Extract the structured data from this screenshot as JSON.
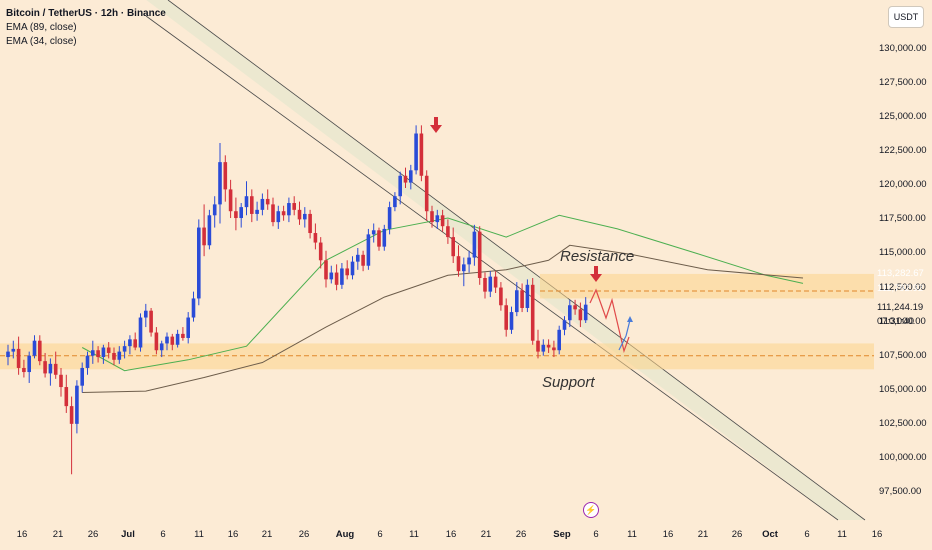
{
  "legend": {
    "title": "Bitcoin / TetherUS · 12h · Binance",
    "ema_slow": "EMA (89, close)",
    "ema_fast": "EMA (34, close)"
  },
  "currency": "USDT",
  "colors": {
    "background": "#fcebd5",
    "up_candle": "#2a4bd7",
    "down_candle": "#d32f3a",
    "ema_fast": "#4caf50",
    "ema_slow": "#6d5d4b",
    "zone": "#fbd38a",
    "channel_fill": "#e9e8cf",
    "arrow_red": "#d32f3a",
    "projection_red": "#e04a4a",
    "projection_blue": "#4a7cd9"
  },
  "price_tags": [
    {
      "value": "113,282.67",
      "color": "#4b4b4b"
    },
    {
      "value": "111,792.92",
      "color": "#2e9e3e"
    },
    {
      "value": "111,244.19",
      "color": "#e4e4e4"
    },
    {
      "value": "07:31:40",
      "color": "#e4e4e4"
    }
  ],
  "annotations": {
    "resistance": "Resistance",
    "support": "Support"
  },
  "chart_data": {
    "type": "candlestick",
    "title": "Bitcoin / TetherUS · 12h · Binance",
    "y_ticks": [
      97500,
      100000,
      102500,
      105000,
      107500,
      110000,
      112500,
      115000,
      117500,
      120000,
      122500,
      125000,
      127500,
      130000
    ],
    "y_tick_labels": [
      "97,500.00",
      "100,000.00",
      "102,500.00",
      "105,000.00",
      "107,500.00",
      "110,000.00",
      "112,500.00",
      "115,000.00",
      "117,500.00",
      "120,000.00",
      "122,500.00",
      "125,000.00",
      "127,500.00",
      "130,000.00"
    ],
    "x_tick_labels": [
      "16",
      "21",
      "26",
      "Jul",
      "6",
      "11",
      "16",
      "21",
      "26",
      "Aug",
      "6",
      "11",
      "16",
      "21",
      "26",
      "Sep",
      "6",
      "11",
      "16",
      "21",
      "26",
      "Oct",
      "6",
      "11",
      "16"
    ],
    "ylim": [
      96000,
      133500
    ],
    "resistance_zone": [
      111700,
      113500
    ],
    "support_zone": [
      106500,
      108400
    ],
    "resistance_level": 112250,
    "support_level": 107500,
    "channel": {
      "upper": [
        [
          "Jul 16",
          133500
        ],
        [
          "Oct 16",
          90000
        ]
      ],
      "lower": [
        [
          "Jul 16",
          130300
        ],
        [
          "Oct 16",
          93200
        ]
      ]
    },
    "series": [
      {
        "name": "EMA (34, close)",
        "values": [
          [
            14,
            108100
          ],
          [
            22,
            106400
          ],
          [
            34,
            107200
          ],
          [
            45,
            108200
          ],
          [
            60,
            114500
          ],
          [
            71,
            116700
          ],
          [
            83,
            117600
          ],
          [
            94,
            116200
          ],
          [
            104,
            117800
          ],
          [
            115,
            116800
          ],
          [
            130,
            115000
          ],
          [
            143,
            113400
          ],
          [
            150,
            112800
          ]
        ]
      },
      {
        "name": "EMA (89, close)",
        "values": [
          [
            14,
            104800
          ],
          [
            26,
            104900
          ],
          [
            37,
            105900
          ],
          [
            48,
            107000
          ],
          [
            60,
            109600
          ],
          [
            71,
            111800
          ],
          [
            83,
            113400
          ],
          [
            94,
            113800
          ],
          [
            102,
            114500
          ],
          [
            106,
            115600
          ],
          [
            118,
            114900
          ],
          [
            132,
            113800
          ],
          [
            150,
            113200
          ]
        ]
      }
    ],
    "candles": [
      [
        0,
        107400,
        108300,
        106800,
        107800
      ],
      [
        1,
        107800,
        108600,
        107300,
        108000
      ],
      [
        2,
        108000,
        108900,
        106100,
        106600
      ],
      [
        3,
        106600,
        107200,
        105900,
        106300
      ],
      [
        4,
        106300,
        107800,
        105500,
        107500
      ],
      [
        5,
        107500,
        109000,
        107300,
        108600
      ],
      [
        6,
        108600,
        109000,
        106800,
        107100
      ],
      [
        7,
        107100,
        107700,
        105900,
        106200
      ],
      [
        8,
        106200,
        107300,
        105300,
        106900
      ],
      [
        9,
        106900,
        107800,
        105800,
        106100
      ],
      [
        10,
        106100,
        106600,
        104500,
        105200
      ],
      [
        11,
        105200,
        106100,
        103300,
        103800
      ],
      [
        12,
        103800,
        104500,
        98800,
        102500
      ],
      [
        13,
        102500,
        105700,
        101800,
        105300
      ],
      [
        14,
        105300,
        107000,
        104800,
        106600
      ],
      [
        15,
        106600,
        107800,
        106100,
        107500
      ],
      [
        16,
        107500,
        108600,
        106900,
        107900
      ],
      [
        17,
        107900,
        108200,
        107000,
        107400
      ],
      [
        18,
        107400,
        108300,
        106900,
        108100
      ],
      [
        19,
        108100,
        108500,
        107300,
        107700
      ],
      [
        20,
        107700,
        108100,
        106800,
        107200
      ],
      [
        21,
        107200,
        108200,
        106900,
        107800
      ],
      [
        22,
        107800,
        108600,
        107300,
        108200
      ],
      [
        23,
        108200,
        109000,
        107600,
        108700
      ],
      [
        24,
        108700,
        109200,
        107900,
        108100
      ],
      [
        25,
        108100,
        110600,
        107800,
        110300
      ],
      [
        26,
        110300,
        111300,
        109600,
        110800
      ],
      [
        27,
        110800,
        111000,
        108900,
        109200
      ],
      [
        28,
        109200,
        109600,
        107600,
        107900
      ],
      [
        29,
        107900,
        108600,
        107400,
        108400
      ],
      [
        30,
        108400,
        109200,
        107900,
        108900
      ],
      [
        31,
        108900,
        109100,
        107900,
        108300
      ],
      [
        32,
        108300,
        109400,
        108100,
        109100
      ],
      [
        33,
        109100,
        109600,
        108600,
        108800
      ],
      [
        34,
        108800,
        110700,
        108400,
        110300
      ],
      [
        35,
        110300,
        112200,
        110000,
        111700
      ],
      [
        36,
        111700,
        117500,
        111200,
        116900
      ],
      [
        37,
        116900,
        118600,
        114800,
        115600
      ],
      [
        38,
        115600,
        118200,
        115300,
        117800
      ],
      [
        39,
        117800,
        119200,
        116900,
        118600
      ],
      [
        40,
        118600,
        123100,
        117200,
        121700
      ],
      [
        41,
        121700,
        122200,
        118800,
        119700
      ],
      [
        42,
        119700,
        120400,
        117600,
        118100
      ],
      [
        43,
        118100,
        119100,
        116700,
        117600
      ],
      [
        44,
        117600,
        118700,
        116900,
        118400
      ],
      [
        45,
        118400,
        120300,
        117800,
        119200
      ],
      [
        46,
        119200,
        119700,
        117300,
        117900
      ],
      [
        47,
        117900,
        118800,
        117400,
        118200
      ],
      [
        48,
        118200,
        119400,
        117800,
        119000
      ],
      [
        49,
        119000,
        119700,
        118200,
        118600
      ],
      [
        50,
        118600,
        119100,
        117000,
        117300
      ],
      [
        51,
        117300,
        118500,
        116800,
        118100
      ],
      [
        52,
        118100,
        118500,
        117400,
        117800
      ],
      [
        53,
        117800,
        119100,
        117300,
        118700
      ],
      [
        54,
        118700,
        119200,
        117800,
        118200
      ],
      [
        55,
        118200,
        118800,
        117100,
        117500
      ],
      [
        56,
        117500,
        118400,
        116900,
        117900
      ],
      [
        57,
        117900,
        118200,
        116100,
        116500
      ],
      [
        58,
        116500,
        117200,
        115300,
        115800
      ],
      [
        59,
        115800,
        116200,
        113900,
        114500
      ],
      [
        60,
        114500,
        115200,
        112500,
        113100
      ],
      [
        61,
        113100,
        114100,
        112800,
        113600
      ],
      [
        62,
        113600,
        114200,
        112300,
        112700
      ],
      [
        63,
        112700,
        114300,
        112400,
        113900
      ],
      [
        64,
        113900,
        114500,
        113100,
        113400
      ],
      [
        65,
        113400,
        114800,
        113100,
        114400
      ],
      [
        66,
        114400,
        115400,
        113800,
        114900
      ],
      [
        67,
        114900,
        115200,
        113700,
        114100
      ],
      [
        68,
        114100,
        116800,
        113800,
        116400
      ],
      [
        69,
        116400,
        117200,
        115800,
        116700
      ],
      [
        70,
        116700,
        116900,
        115200,
        115500
      ],
      [
        71,
        115500,
        117100,
        115200,
        116800
      ],
      [
        72,
        116800,
        118800,
        116400,
        118400
      ],
      [
        73,
        118400,
        119500,
        118100,
        119200
      ],
      [
        74,
        119200,
        121000,
        118600,
        120700
      ],
      [
        75,
        120700,
        121300,
        119800,
        120200
      ],
      [
        76,
        120200,
        121500,
        119700,
        121100
      ],
      [
        77,
        121100,
        124400,
        120800,
        123800
      ],
      [
        78,
        123800,
        124400,
        120300,
        120700
      ],
      [
        79,
        120700,
        121100,
        117400,
        118100
      ],
      [
        80,
        118100,
        118500,
        116900,
        117300
      ],
      [
        81,
        117300,
        118200,
        116800,
        117800
      ],
      [
        82,
        117800,
        118200,
        116600,
        117000
      ],
      [
        83,
        117000,
        117500,
        115700,
        116200
      ],
      [
        84,
        116200,
        116900,
        114300,
        114800
      ],
      [
        85,
        114800,
        115600,
        113300,
        113700
      ],
      [
        86,
        113700,
        114700,
        112600,
        114200
      ],
      [
        87,
        114200,
        115200,
        113600,
        114700
      ],
      [
        88,
        114700,
        117100,
        114100,
        116600
      ],
      [
        89,
        116600,
        117000,
        112700,
        113200
      ],
      [
        90,
        113200,
        113600,
        111700,
        112200
      ],
      [
        91,
        112200,
        113700,
        111800,
        113300
      ],
      [
        92,
        113300,
        113700,
        112100,
        112500
      ],
      [
        93,
        112500,
        112900,
        110800,
        111200
      ],
      [
        94,
        111200,
        111700,
        108900,
        109400
      ],
      [
        95,
        109400,
        111100,
        109100,
        110700
      ],
      [
        96,
        110700,
        112900,
        110400,
        112300
      ],
      [
        97,
        112300,
        112800,
        110700,
        111000
      ],
      [
        98,
        111000,
        113100,
        110700,
        112700
      ],
      [
        99,
        112700,
        113200,
        108300,
        108600
      ],
      [
        100,
        108600,
        109400,
        107300,
        107800
      ],
      [
        101,
        107800,
        108700,
        107500,
        108300
      ],
      [
        102,
        108300,
        108700,
        107700,
        108100
      ],
      [
        103,
        108100,
        108600,
        107400,
        107900
      ],
      [
        104,
        107900,
        109700,
        107600,
        109400
      ],
      [
        105,
        109400,
        110400,
        109000,
        110100
      ],
      [
        106,
        110100,
        111600,
        109600,
        111200
      ],
      [
        107,
        111200,
        111600,
        110500,
        110900
      ],
      [
        108,
        110900,
        111400,
        109600,
        110100
      ],
      [
        109,
        110100,
        111800,
        109900,
        111244
      ]
    ]
  }
}
